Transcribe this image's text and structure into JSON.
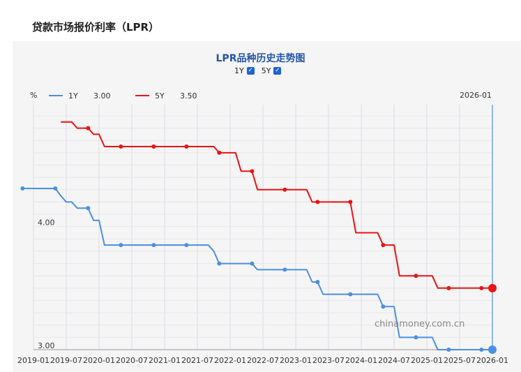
{
  "page": {
    "heading": "贷款市场报价利率（LPR）"
  },
  "chart_data": {
    "type": "line",
    "title": "LPR品种历史走势图",
    "ylabel": "%",
    "ylim": [
      3.0,
      4.9
    ],
    "yticks": [
      {
        "value": 3.0,
        "label": "3.00"
      },
      {
        "value": 4.0,
        "label": "4.00"
      }
    ],
    "x_tick_labels": [
      "2019-01",
      "2019-07",
      "2020-01",
      "2020-07",
      "2021-01",
      "2021-07",
      "2022-01",
      "2022-07",
      "2023-01",
      "2023-07",
      "2024-01",
      "2024-07",
      "2025-01",
      "2025-07",
      "2026-01"
    ],
    "cursor_label": "2026-01",
    "toggles": [
      {
        "label": "1Y",
        "checked": true
      },
      {
        "label": "5Y",
        "checked": true
      }
    ],
    "series": [
      {
        "name": "1Y",
        "current": "3.00",
        "color": "#4a90e2",
        "points": [
          [
            0,
            4.31
          ],
          [
            1,
            4.31
          ],
          [
            2,
            4.31
          ],
          [
            3,
            4.31
          ],
          [
            4,
            4.31
          ],
          [
            5,
            4.31
          ],
          [
            6,
            4.31
          ],
          [
            7,
            4.25
          ],
          [
            8,
            4.2
          ],
          [
            9,
            4.2
          ],
          [
            10,
            4.15
          ],
          [
            11,
            4.15
          ],
          [
            12,
            4.15
          ],
          [
            13,
            4.05
          ],
          [
            14,
            4.05
          ],
          [
            15,
            3.85
          ],
          [
            16,
            3.85
          ],
          [
            17,
            3.85
          ],
          [
            18,
            3.85
          ],
          [
            19,
            3.85
          ],
          [
            20,
            3.85
          ],
          [
            21,
            3.85
          ],
          [
            22,
            3.85
          ],
          [
            23,
            3.85
          ],
          [
            24,
            3.85
          ],
          [
            25,
            3.85
          ],
          [
            26,
            3.85
          ],
          [
            27,
            3.85
          ],
          [
            28,
            3.85
          ],
          [
            29,
            3.85
          ],
          [
            30,
            3.85
          ],
          [
            31,
            3.85
          ],
          [
            32,
            3.85
          ],
          [
            33,
            3.85
          ],
          [
            34,
            3.85
          ],
          [
            35,
            3.8
          ],
          [
            36,
            3.7
          ],
          [
            37,
            3.7
          ],
          [
            38,
            3.7
          ],
          [
            39,
            3.7
          ],
          [
            40,
            3.7
          ],
          [
            41,
            3.7
          ],
          [
            42,
            3.7
          ],
          [
            43,
            3.65
          ],
          [
            44,
            3.65
          ],
          [
            45,
            3.65
          ],
          [
            46,
            3.65
          ],
          [
            47,
            3.65
          ],
          [
            48,
            3.65
          ],
          [
            49,
            3.65
          ],
          [
            50,
            3.65
          ],
          [
            51,
            3.65
          ],
          [
            52,
            3.65
          ],
          [
            53,
            3.55
          ],
          [
            54,
            3.55
          ],
          [
            55,
            3.45
          ],
          [
            56,
            3.45
          ],
          [
            57,
            3.45
          ],
          [
            58,
            3.45
          ],
          [
            59,
            3.45
          ],
          [
            60,
            3.45
          ],
          [
            61,
            3.45
          ],
          [
            62,
            3.45
          ],
          [
            63,
            3.45
          ],
          [
            64,
            3.45
          ],
          [
            65,
            3.45
          ],
          [
            66,
            3.35
          ],
          [
            67,
            3.35
          ],
          [
            68,
            3.35
          ],
          [
            69,
            3.1
          ],
          [
            70,
            3.1
          ],
          [
            71,
            3.1
          ],
          [
            72,
            3.1
          ],
          [
            73,
            3.1
          ],
          [
            74,
            3.1
          ],
          [
            75,
            3.1
          ],
          [
            76,
            3.0
          ],
          [
            77,
            3.0
          ],
          [
            78,
            3.0
          ],
          [
            79,
            3.0
          ],
          [
            80,
            3.0
          ],
          [
            81,
            3.0
          ],
          [
            82,
            3.0
          ],
          [
            83,
            3.0
          ],
          [
            84,
            3.0
          ],
          [
            85,
            3.0
          ],
          [
            86,
            3.0
          ]
        ]
      },
      {
        "name": "5Y",
        "current": "3.50",
        "color": "#ee1111",
        "points": [
          [
            7,
            4.85
          ],
          [
            8,
            4.85
          ],
          [
            9,
            4.85
          ],
          [
            10,
            4.8
          ],
          [
            11,
            4.8
          ],
          [
            12,
            4.8
          ],
          [
            13,
            4.75
          ],
          [
            14,
            4.75
          ],
          [
            15,
            4.65
          ],
          [
            16,
            4.65
          ],
          [
            17,
            4.65
          ],
          [
            18,
            4.65
          ],
          [
            19,
            4.65
          ],
          [
            20,
            4.65
          ],
          [
            21,
            4.65
          ],
          [
            22,
            4.65
          ],
          [
            23,
            4.65
          ],
          [
            24,
            4.65
          ],
          [
            25,
            4.65
          ],
          [
            26,
            4.65
          ],
          [
            27,
            4.65
          ],
          [
            28,
            4.65
          ],
          [
            29,
            4.65
          ],
          [
            30,
            4.65
          ],
          [
            31,
            4.65
          ],
          [
            32,
            4.65
          ],
          [
            33,
            4.65
          ],
          [
            34,
            4.65
          ],
          [
            35,
            4.65
          ],
          [
            36,
            4.6
          ],
          [
            37,
            4.6
          ],
          [
            38,
            4.6
          ],
          [
            39,
            4.6
          ],
          [
            40,
            4.45
          ],
          [
            41,
            4.45
          ],
          [
            42,
            4.45
          ],
          [
            43,
            4.3
          ],
          [
            44,
            4.3
          ],
          [
            45,
            4.3
          ],
          [
            46,
            4.3
          ],
          [
            47,
            4.3
          ],
          [
            48,
            4.3
          ],
          [
            49,
            4.3
          ],
          [
            50,
            4.3
          ],
          [
            51,
            4.3
          ],
          [
            52,
            4.3
          ],
          [
            53,
            4.2
          ],
          [
            54,
            4.2
          ],
          [
            55,
            4.2
          ],
          [
            56,
            4.2
          ],
          [
            57,
            4.2
          ],
          [
            58,
            4.2
          ],
          [
            59,
            4.2
          ],
          [
            60,
            4.2
          ],
          [
            61,
            3.95
          ],
          [
            62,
            3.95
          ],
          [
            63,
            3.95
          ],
          [
            64,
            3.95
          ],
          [
            65,
            3.95
          ],
          [
            66,
            3.85
          ],
          [
            67,
            3.85
          ],
          [
            68,
            3.85
          ],
          [
            69,
            3.6
          ],
          [
            70,
            3.6
          ],
          [
            71,
            3.6
          ],
          [
            72,
            3.6
          ],
          [
            73,
            3.6
          ],
          [
            74,
            3.6
          ],
          [
            75,
            3.6
          ],
          [
            76,
            3.5
          ],
          [
            77,
            3.5
          ],
          [
            78,
            3.5
          ],
          [
            79,
            3.5
          ],
          [
            80,
            3.5
          ],
          [
            81,
            3.5
          ],
          [
            82,
            3.5
          ],
          [
            83,
            3.5
          ],
          [
            84,
            3.5
          ],
          [
            85,
            3.5
          ],
          [
            86,
            3.5
          ]
        ]
      }
    ]
  },
  "watermark": "chinamoney.com.cn"
}
